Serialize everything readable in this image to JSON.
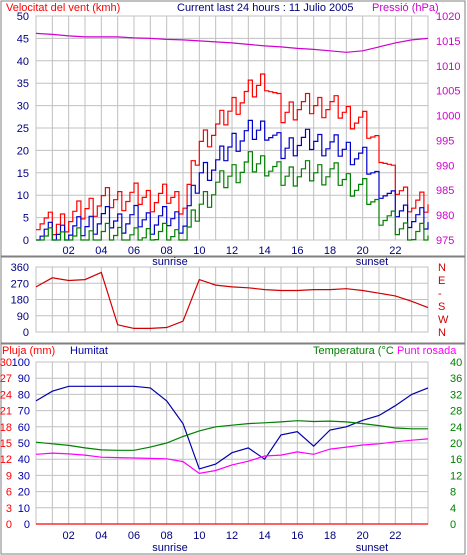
{
  "header": {
    "wind_title": "Velocitat del vent (kmh)",
    "center_title": "Current last 24 hours : 11 Julio 2005",
    "pressure_title": "Pressió (hPa)"
  },
  "panel3": {
    "rain_title": "Pluja (mm)",
    "humidity_title": "Humitat",
    "temperature_title": "Temperatura (°C",
    "dewpoint_title": "Punt rosada"
  },
  "x_axis": {
    "ticks": [
      "02",
      "04",
      "06",
      "08",
      "10",
      "12",
      "14",
      "16",
      "18",
      "20",
      "22"
    ],
    "sunrise_label": "sunrise",
    "sunset_label": "sunset"
  },
  "colors": {
    "frame": "#808080",
    "grid": "#c0c0c0",
    "wind_max": "#ff0000",
    "wind_avg": "#0000cc",
    "wind_min": "#008000",
    "pressure": "#d000d0",
    "direction": "#d00000",
    "humidity": "#0000aa",
    "temperature": "#008000",
    "dewpoint": "#ff00ff",
    "rain": "#ff0000"
  },
  "chart_data": [
    {
      "type": "line",
      "title": "Velocitat del vent (kmh)",
      "x_hours": [
        0,
        1,
        2,
        3,
        4,
        5,
        6,
        7,
        8,
        9,
        10,
        11,
        12,
        13,
        14,
        15,
        16,
        17,
        18,
        19,
        20,
        21,
        22,
        23,
        24
      ],
      "series": [
        {
          "name": "wind_max",
          "values": [
            5,
            3,
            5,
            7,
            9,
            9,
            10,
            9,
            10,
            8,
            22,
            25,
            30,
            33,
            36,
            28,
            30,
            30,
            30,
            28,
            26,
            20,
            12,
            8,
            8
          ]
        },
        {
          "name": "wind_avg",
          "values": [
            2,
            1,
            2,
            3,
            5,
            4,
            5,
            4,
            5,
            4,
            15,
            17,
            22,
            24,
            25,
            20,
            22,
            22,
            21,
            20,
            18,
            12,
            7,
            5,
            4
          ]
        },
        {
          "name": "wind_min",
          "values": [
            0,
            0,
            0,
            0,
            1,
            1,
            0,
            1,
            1,
            0,
            8,
            12,
            15,
            17,
            17,
            14,
            15,
            15,
            15,
            13,
            11,
            6,
            3,
            1,
            1
          ]
        }
      ],
      "ylim": [
        0,
        50
      ],
      "yticks": [
        "0",
        "5",
        "10",
        "15",
        "20",
        "25",
        "30",
        "35",
        "40",
        "45",
        "50"
      ],
      "y2_label": "Pressió (hPa)",
      "y2lim": [
        975,
        1020
      ],
      "y2ticks": [
        "975",
        "980",
        "985",
        "990",
        "995",
        "1000",
        "1005",
        "1010",
        "1015",
        "1020"
      ],
      "pressure": [
        1016.5,
        1016.3,
        1016,
        1015.8,
        1015.8,
        1015.8,
        1015.6,
        1015.5,
        1015.3,
        1015.2,
        1015,
        1014.8,
        1014.6,
        1014.3,
        1014,
        1013.8,
        1013.5,
        1013.3,
        1013,
        1012.7,
        1013,
        1013.8,
        1014.6,
        1015.2,
        1015.5
      ]
    },
    {
      "type": "line",
      "title": "",
      "x_hours": [
        0,
        1,
        2,
        3,
        4,
        5,
        6,
        7,
        8,
        9,
        10,
        11,
        12,
        13,
        14,
        15,
        16,
        17,
        18,
        19,
        20,
        21,
        22,
        23,
        24
      ],
      "series": [
        {
          "name": "direction",
          "values": [
            250,
            300,
            285,
            290,
            330,
            40,
            20,
            20,
            25,
            60,
            290,
            260,
            250,
            245,
            235,
            230,
            230,
            235,
            235,
            240,
            230,
            215,
            200,
            170,
            135
          ]
        }
      ],
      "ylim": [
        0,
        360
      ],
      "yticks": [
        "0",
        "90",
        "180",
        "270",
        "360"
      ],
      "y2ticks": [
        "N",
        "W",
        "S",
        "-",
        "E",
        "N"
      ]
    },
    {
      "type": "line",
      "title": "",
      "x_hours": [
        0,
        1,
        2,
        3,
        4,
        5,
        6,
        7,
        8,
        9,
        10,
        11,
        12,
        13,
        14,
        15,
        16,
        17,
        18,
        19,
        20,
        21,
        22,
        23,
        24
      ],
      "series": [
        {
          "name": "humidity",
          "values": [
            76,
            82,
            85,
            85,
            85,
            85,
            85,
            84,
            76,
            62,
            34,
            37,
            44,
            47,
            40,
            55,
            57,
            48,
            58,
            60,
            64,
            67,
            73,
            80,
            84
          ]
        },
        {
          "name": "temperature",
          "values": [
            20.2,
            19.8,
            19.4,
            18.8,
            18.3,
            18.2,
            18.2,
            19.0,
            20.0,
            21.6,
            23.0,
            24.0,
            24.4,
            24.8,
            25.0,
            25.2,
            25.5,
            25.3,
            25.4,
            25.2,
            24.8,
            24.3,
            23.7,
            23.5,
            23.5
          ]
        },
        {
          "name": "dewpoint",
          "values": [
            17.2,
            17.5,
            17.3,
            17.0,
            16.5,
            16.4,
            16.3,
            16.2,
            16.1,
            15.4,
            12.5,
            13.2,
            14.6,
            15.5,
            16.8,
            17.0,
            17.8,
            17.2,
            18.5,
            19.0,
            19.5,
            19.8,
            20.3,
            20.7,
            21.0
          ]
        },
        {
          "name": "rain",
          "values": [
            0,
            0,
            0,
            0,
            0,
            0,
            0,
            0,
            0,
            0,
            0,
            0,
            0,
            0,
            0,
            0,
            0,
            0,
            0,
            0,
            0,
            0,
            0,
            0,
            0
          ]
        }
      ],
      "rain_ylim": [
        0,
        30
      ],
      "rain_ticks": [
        "0",
        "3",
        "6",
        "9",
        "12",
        "15",
        "18",
        "21",
        "24",
        "27",
        "30"
      ],
      "humidity_ylim": [
        0,
        100
      ],
      "humidity_ticks": [
        "0",
        "10",
        "20",
        "30",
        "40",
        "50",
        "60",
        "70",
        "80",
        "90",
        "100"
      ],
      "temperature_ylim": [
        0,
        40
      ],
      "temperature_ticks": [
        "0",
        "4",
        "8",
        "12",
        "16",
        "20",
        "24",
        "28",
        "32",
        "36",
        "40"
      ]
    }
  ]
}
